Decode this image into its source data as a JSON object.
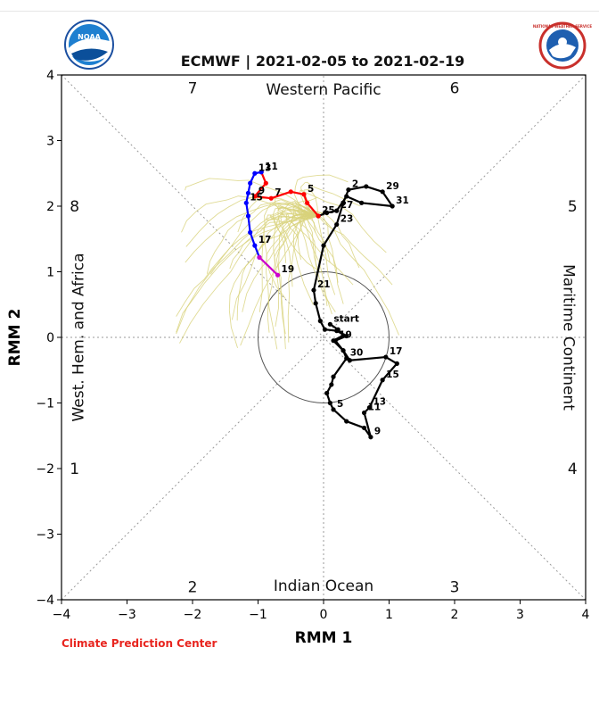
{
  "page": {
    "title": "ECMWF | 2021-02-05 to 2021-02-19",
    "credit": "Climate Prediction Center",
    "logo_left": "noaa-logo",
    "logo_right": "national-weather-service-logo",
    "logo_left_text": "NOAA",
    "logo_right_text": "NATIONAL WEATHER SERVICE"
  },
  "chart_data": {
    "type": "line",
    "title": "ECMWF | 2021-02-05 to 2021-02-19",
    "xlabel": "RMM 1",
    "ylabel": "RMM 2",
    "xlim": [
      -4,
      4
    ],
    "ylim": [
      -4,
      4
    ],
    "xticks": [
      "−4",
      "−3",
      "−2",
      "−1",
      "0",
      "1",
      "2",
      "3",
      "4"
    ],
    "yticks": [
      "4",
      "3",
      "2",
      "1",
      "0",
      "−1",
      "−2",
      "−3",
      "−4"
    ],
    "tick_values": [
      -4,
      -3,
      -2,
      -1,
      0,
      1,
      2,
      3,
      4
    ],
    "unit_circle_radius": 1,
    "phase_labels": [
      {
        "text": "1",
        "x": -3.8,
        "y": -2.0
      },
      {
        "text": "2",
        "x": -2.0,
        "y": -3.8
      },
      {
        "text": "3",
        "x": 2.0,
        "y": -3.8
      },
      {
        "text": "4",
        "x": 3.8,
        "y": -2.0
      },
      {
        "text": "5",
        "x": 3.8,
        "y": 2.0
      },
      {
        "text": "6",
        "x": 2.0,
        "y": 3.8
      },
      {
        "text": "7",
        "x": -2.0,
        "y": 3.8
      },
      {
        "text": "8",
        "x": -3.8,
        "y": 2.0
      }
    ],
    "region_labels": {
      "top": "Western Pacific",
      "bottom": "Indian Ocean",
      "left": "West. Hem. and Africa",
      "right": "Maritime Continent"
    },
    "colors": {
      "observed": "#000000",
      "forecast_week1": "#ff0000",
      "forecast_week2": "#0000ff",
      "forecast_end": "#cc00cc",
      "ensemble": "#d8d27a",
      "credit": "#e8251f"
    },
    "series": [
      {
        "key": "observed",
        "color": "#000000",
        "points": [
          [
            0.1,
            0.2,
            "start"
          ],
          [
            0.22,
            0.12,
            ""
          ],
          [
            0.3,
            0.03,
            ""
          ],
          [
            0.15,
            -0.05,
            ""
          ],
          [
            0.3,
            -0.2,
            ""
          ],
          [
            0.35,
            -0.32,
            "30"
          ],
          [
            0.15,
            -0.6,
            ""
          ],
          [
            0.12,
            -0.72,
            ""
          ],
          [
            0.05,
            -0.85,
            ""
          ],
          [
            0.1,
            -1.0,
            ""
          ],
          [
            0.15,
            -1.1,
            "5"
          ],
          [
            0.35,
            -1.28,
            ""
          ],
          [
            0.62,
            -1.38,
            ""
          ],
          [
            0.72,
            -1.52,
            "9"
          ],
          [
            0.62,
            -1.15,
            "11"
          ],
          [
            0.7,
            -1.07,
            "13"
          ],
          [
            0.9,
            -0.65,
            "15"
          ],
          [
            1.12,
            -0.4,
            ""
          ],
          [
            0.95,
            -0.3,
            "17"
          ],
          [
            0.4,
            -0.35,
            ""
          ],
          [
            0.3,
            -0.2,
            ""
          ],
          [
            0.18,
            -0.05,
            "19"
          ],
          [
            0.35,
            0.02,
            ""
          ],
          [
            0.2,
            0.1,
            ""
          ],
          [
            0.02,
            0.12,
            ""
          ],
          [
            -0.05,
            0.25,
            ""
          ],
          [
            -0.12,
            0.52,
            ""
          ],
          [
            -0.15,
            0.72,
            "21"
          ],
          [
            0.0,
            1.4,
            ""
          ],
          [
            0.2,
            1.72,
            "23"
          ],
          [
            0.3,
            2.05,
            ""
          ],
          [
            0.38,
            2.25,
            "2"
          ],
          [
            0.65,
            2.3,
            ""
          ],
          [
            0.9,
            2.22,
            "29"
          ],
          [
            1.05,
            2.0,
            "31"
          ],
          [
            0.58,
            2.05,
            ""
          ],
          [
            0.35,
            2.15,
            ""
          ],
          [
            0.2,
            1.93,
            "27"
          ],
          [
            0.05,
            1.9,
            ""
          ],
          [
            -0.08,
            1.85,
            "25"
          ]
        ]
      },
      {
        "key": "forecast_week1",
        "color": "#ff0000",
        "points": [
          [
            -0.08,
            1.85,
            ""
          ],
          [
            -0.25,
            2.05,
            ""
          ],
          [
            -0.3,
            2.18,
            "5"
          ],
          [
            -0.5,
            2.22,
            ""
          ],
          [
            -0.8,
            2.12,
            "7"
          ],
          [
            -1.05,
            2.15,
            "9"
          ],
          [
            -0.88,
            2.35,
            ""
          ],
          [
            -0.95,
            2.52,
            "11"
          ]
        ]
      },
      {
        "key": "forecast_week2",
        "color": "#0000ff",
        "points": [
          [
            -0.95,
            2.52,
            ""
          ],
          [
            -1.05,
            2.5,
            "13"
          ],
          [
            -1.12,
            2.35,
            ""
          ],
          [
            -1.15,
            2.2,
            ""
          ],
          [
            -1.18,
            2.05,
            "15"
          ],
          [
            -1.15,
            1.85,
            ""
          ],
          [
            -1.12,
            1.6,
            ""
          ],
          [
            -1.05,
            1.4,
            "17"
          ],
          [
            -0.98,
            1.22,
            ""
          ]
        ]
      },
      {
        "key": "forecast_end",
        "color": "#cc00cc",
        "points": [
          [
            -0.98,
            1.22,
            ""
          ],
          [
            -0.7,
            0.95,
            "19"
          ]
        ]
      }
    ]
  }
}
